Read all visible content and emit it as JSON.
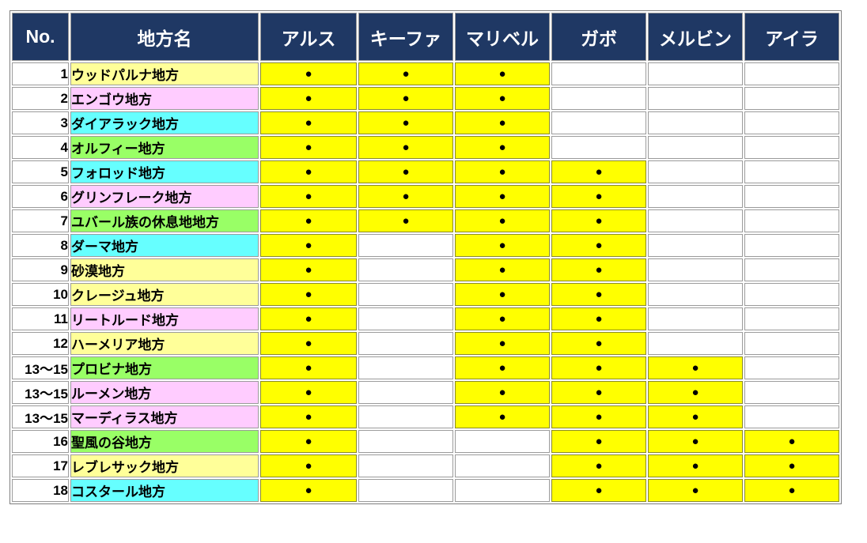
{
  "table": {
    "mark": "●",
    "colors": {
      "header_bg": "#1F3864",
      "header_text": "#FFFFFF",
      "mark_bg": "#FFFF00",
      "row_yellow": "#FFFF99",
      "row_pink": "#FFCCFF",
      "row_cyan": "#66FFFF",
      "row_green": "#99FF66",
      "grid_border": "#9B9B9B"
    },
    "header": {
      "no": "No.",
      "region": "地方名",
      "members": [
        "アルス",
        "キーファ",
        "マリベル",
        "ガボ",
        "メルビン",
        "アイラ"
      ]
    },
    "rows": [
      {
        "no": "1",
        "region": "ウッドパルナ地方",
        "color": "row_yellow",
        "members": [
          1,
          1,
          1,
          0,
          0,
          0
        ]
      },
      {
        "no": "2",
        "region": "エンゴウ地方",
        "color": "row_pink",
        "members": [
          1,
          1,
          1,
          0,
          0,
          0
        ]
      },
      {
        "no": "3",
        "region": "ダイアラック地方",
        "color": "row_cyan",
        "members": [
          1,
          1,
          1,
          0,
          0,
          0
        ]
      },
      {
        "no": "4",
        "region": "オルフィー地方",
        "color": "row_green",
        "members": [
          1,
          1,
          1,
          0,
          0,
          0
        ]
      },
      {
        "no": "5",
        "region": "フォロッド地方",
        "color": "row_cyan",
        "members": [
          1,
          1,
          1,
          1,
          0,
          0
        ]
      },
      {
        "no": "6",
        "region": "グリンフレーク地方",
        "color": "row_pink",
        "members": [
          1,
          1,
          1,
          1,
          0,
          0
        ]
      },
      {
        "no": "7",
        "region": "ユバール族の休息地地方",
        "color": "row_green",
        "members": [
          1,
          1,
          1,
          1,
          0,
          0
        ]
      },
      {
        "no": "8",
        "region": "ダーマ地方",
        "color": "row_cyan",
        "members": [
          1,
          0,
          1,
          1,
          0,
          0
        ]
      },
      {
        "no": "9",
        "region": "砂漠地方",
        "color": "row_yellow",
        "members": [
          1,
          0,
          1,
          1,
          0,
          0
        ]
      },
      {
        "no": "10",
        "region": "クレージュ地方",
        "color": "row_yellow",
        "members": [
          1,
          0,
          1,
          1,
          0,
          0
        ]
      },
      {
        "no": "11",
        "region": "リートルード地方",
        "color": "row_pink",
        "members": [
          1,
          0,
          1,
          1,
          0,
          0
        ]
      },
      {
        "no": "12",
        "region": "ハーメリア地方",
        "color": "row_yellow",
        "members": [
          1,
          0,
          1,
          1,
          0,
          0
        ]
      },
      {
        "no": "13〜15",
        "region": "プロビナ地方",
        "color": "row_green",
        "members": [
          1,
          0,
          1,
          1,
          1,
          0
        ]
      },
      {
        "no": "13〜15",
        "region": "ルーメン地方",
        "color": "row_pink",
        "members": [
          1,
          0,
          1,
          1,
          1,
          0
        ]
      },
      {
        "no": "13〜15",
        "region": "マーディラス地方",
        "color": "row_pink",
        "members": [
          1,
          0,
          1,
          1,
          1,
          0
        ]
      },
      {
        "no": "16",
        "region": "聖風の谷地方",
        "color": "row_green",
        "members": [
          1,
          0,
          0,
          1,
          1,
          1
        ]
      },
      {
        "no": "17",
        "region": "レブレサック地方",
        "color": "row_yellow",
        "members": [
          1,
          0,
          0,
          1,
          1,
          1
        ]
      },
      {
        "no": "18",
        "region": "コスタール地方",
        "color": "row_cyan",
        "members": [
          1,
          0,
          0,
          1,
          1,
          1
        ]
      }
    ]
  }
}
